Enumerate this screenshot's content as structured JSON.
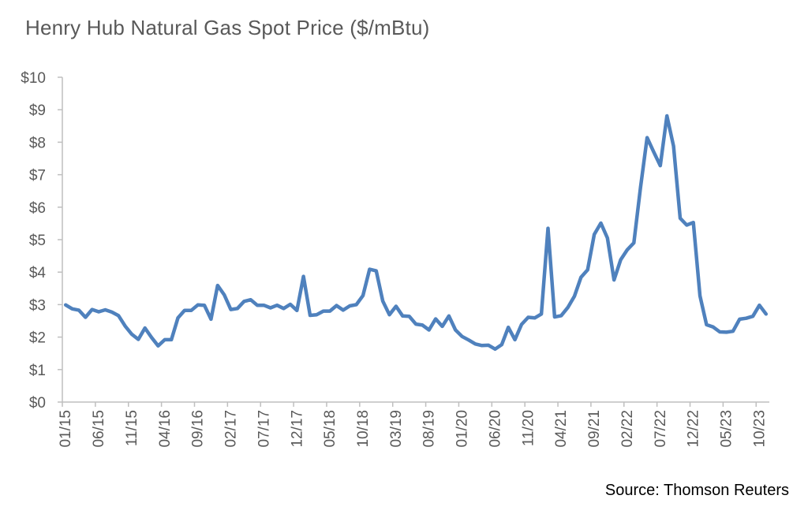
{
  "title": "Henry Hub Natural Gas Spot Price ($/mBtu)",
  "source": "Source: Thomson Reuters",
  "chart_data": {
    "type": "line",
    "title": "Henry Hub Natural Gas Spot Price ($/mBtu)",
    "xlabel": "",
    "ylabel": "",
    "ylim": [
      0,
      10
    ],
    "grid": false,
    "legend": "none",
    "y_tick_labels": [
      "$0",
      "$1",
      "$2",
      "$3",
      "$4",
      "$5",
      "$6",
      "$7",
      "$8",
      "$9",
      "$10"
    ],
    "x_tick_labels": [
      "01/15",
      "06/15",
      "11/15",
      "04/16",
      "09/16",
      "02/17",
      "07/17",
      "12/17",
      "05/18",
      "10/18",
      "03/19",
      "08/19",
      "01/20",
      "06/20",
      "11/20",
      "04/21",
      "09/21",
      "02/22",
      "07/22",
      "12/22",
      "05/23",
      "10/23"
    ],
    "line_color": "#4f81bd",
    "series": [
      {
        "x": [
          "01/15",
          "02/15",
          "03/15",
          "04/15",
          "05/15",
          "06/15",
          "07/15",
          "08/15",
          "09/15",
          "10/15",
          "11/15",
          "12/15",
          "01/16",
          "02/16",
          "03/16",
          "04/16",
          "05/16",
          "06/16",
          "07/16",
          "08/16",
          "09/16",
          "10/16",
          "11/16",
          "12/16",
          "01/17",
          "02/17",
          "03/17",
          "04/17",
          "05/17",
          "06/17",
          "07/17",
          "08/17",
          "09/17",
          "10/17",
          "11/17",
          "12/17",
          "01/18",
          "02/18",
          "03/18",
          "04/18",
          "05/18",
          "06/18",
          "07/18",
          "08/18",
          "09/18",
          "10/18",
          "11/18",
          "12/18",
          "01/19",
          "02/19",
          "03/19",
          "04/19",
          "05/19",
          "06/19",
          "07/19",
          "08/19",
          "09/19",
          "10/19",
          "11/19",
          "12/19",
          "01/20",
          "02/20",
          "03/20",
          "04/20",
          "05/20",
          "06/20",
          "07/20",
          "08/20",
          "09/20",
          "10/20",
          "11/20",
          "12/20",
          "01/21",
          "02/21",
          "03/21",
          "04/21",
          "05/21",
          "06/21",
          "07/21",
          "08/21",
          "09/21",
          "10/21",
          "11/21",
          "12/21",
          "01/22",
          "02/22",
          "03/22",
          "04/22",
          "05/22",
          "06/22",
          "07/22",
          "08/22",
          "09/22",
          "10/22",
          "11/22",
          "12/22",
          "01/23",
          "02/23",
          "03/23",
          "04/23",
          "05/23",
          "06/23",
          "07/23",
          "08/23",
          "09/23",
          "10/23",
          "11/23"
        ],
        "values": [
          2.99,
          2.87,
          2.83,
          2.61,
          2.85,
          2.78,
          2.84,
          2.77,
          2.66,
          2.34,
          2.09,
          1.93,
          2.28,
          1.99,
          1.73,
          1.92,
          1.92,
          2.59,
          2.82,
          2.82,
          2.99,
          2.98,
          2.55,
          3.59,
          3.3,
          2.85,
          2.88,
          3.1,
          3.15,
          2.98,
          2.98,
          2.9,
          2.98,
          2.88,
          3.01,
          2.82,
          3.87,
          2.67,
          2.69,
          2.8,
          2.8,
          2.97,
          2.83,
          2.96,
          3.0,
          3.28,
          4.09,
          4.04,
          3.11,
          2.69,
          2.95,
          2.65,
          2.64,
          2.4,
          2.37,
          2.22,
          2.56,
          2.33,
          2.65,
          2.22,
          2.02,
          1.91,
          1.79,
          1.74,
          1.75,
          1.63,
          1.77,
          2.3,
          1.92,
          2.39,
          2.61,
          2.59,
          2.71,
          5.35,
          2.62,
          2.66,
          2.91,
          3.26,
          3.84,
          4.07,
          5.16,
          5.51,
          5.05,
          3.76,
          4.38,
          4.69,
          4.9,
          6.6,
          8.14,
          7.7,
          7.28,
          8.81,
          7.88,
          5.66,
          5.45,
          5.53,
          3.27,
          2.38,
          2.31,
          2.16,
          2.15,
          2.18,
          2.55,
          2.58,
          2.64,
          2.98,
          2.71
        ]
      }
    ]
  }
}
